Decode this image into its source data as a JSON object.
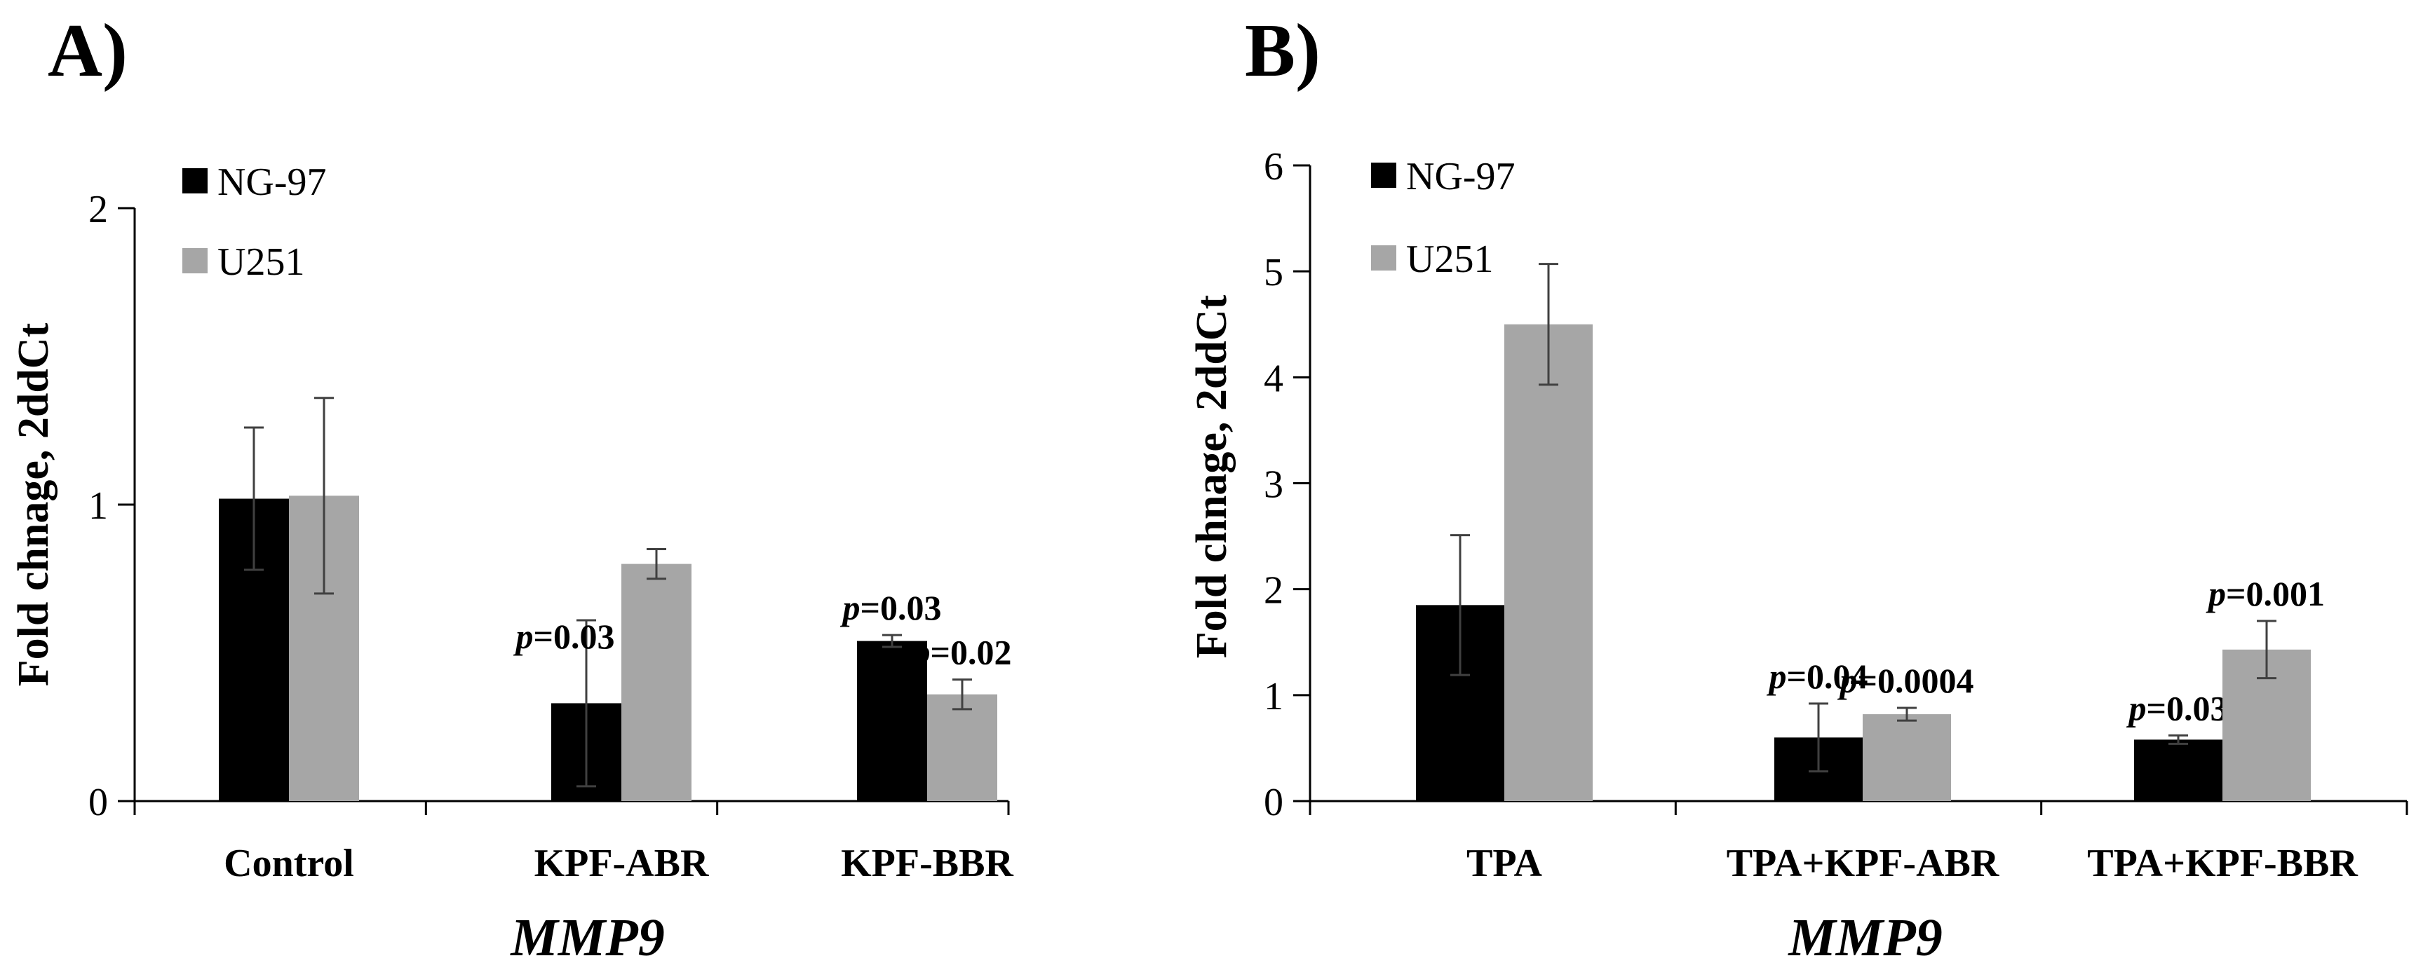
{
  "chart_data": [
    {
      "type": "bar",
      "panel": "A)",
      "categories": [
        "Control",
        "KPF-ABR",
        "KPF-BBR"
      ],
      "xlabel": "MMP9",
      "ylabel": "Fold chnage, 2ddCt",
      "ylim": [
        0,
        2
      ],
      "yticks": [
        0,
        1,
        2
      ],
      "grid": false,
      "legend": "top-left",
      "series": [
        {
          "name": "NG-97",
          "color": "#000000",
          "values": [
            1.02,
            0.33,
            0.54
          ],
          "errors": [
            0.24,
            0.28,
            0.02
          ],
          "annotations": [
            "",
            "p=0.03",
            "p=0.03"
          ]
        },
        {
          "name": "U251",
          "color": "#a6a6a6",
          "values": [
            1.03,
            0.8,
            0.36
          ],
          "errors": [
            0.33,
            0.05,
            0.05
          ],
          "annotations": [
            "",
            "",
            "p=0.02"
          ]
        }
      ]
    },
    {
      "type": "bar",
      "panel": "B)",
      "categories": [
        "TPA",
        "TPA+KPF-ABR",
        "TPA+KPF-BBR"
      ],
      "xlabel": "MMP9",
      "ylabel": "Fold chnage, 2ddCt",
      "ylim": [
        0,
        6
      ],
      "yticks": [
        0,
        1,
        2,
        3,
        4,
        5,
        6
      ],
      "grid": false,
      "legend": "top-left",
      "series": [
        {
          "name": "NG-97",
          "color": "#000000",
          "values": [
            1.85,
            0.6,
            0.58
          ],
          "errors": [
            0.66,
            0.32,
            0.04
          ],
          "annotations": [
            "",
            "p=0.04",
            "p=0.03"
          ]
        },
        {
          "name": "U251",
          "color": "#a6a6a6",
          "values": [
            4.5,
            0.82,
            1.43
          ],
          "errors": [
            0.57,
            0.06,
            0.27
          ],
          "annotations": [
            "",
            "p=0.0004",
            "p=0.001"
          ]
        }
      ]
    }
  ]
}
